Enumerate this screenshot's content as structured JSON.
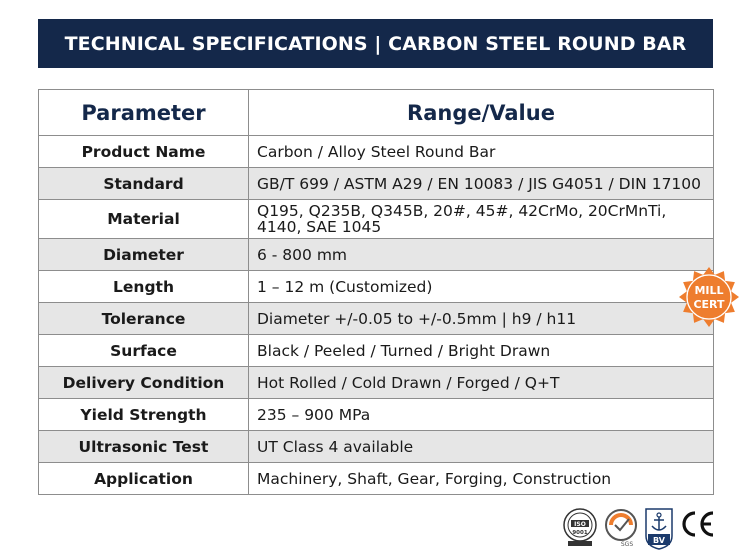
{
  "banner": {
    "title": "TECHNICAL SPECIFICATIONS | CARBON STEEL ROUND BAR"
  },
  "table": {
    "headers": {
      "parameter": "Parameter",
      "value": "Range/Value"
    },
    "rows": [
      {
        "parameter": "Product Name",
        "value": "Carbon / Alloy Steel Round Bar"
      },
      {
        "parameter": "Standard",
        "value": "GB/T 699 / ASTM A29 / EN 10083 / JIS G4051 / DIN 17100"
      },
      {
        "parameter": "Material",
        "value_line1": "Q195, Q235B, Q345B, 20#, 45#, 42CrMo, 20CrMnTi,",
        "value_line2": "4140, SAE 1045"
      },
      {
        "parameter": "Diameter",
        "value": "6 - 800 mm"
      },
      {
        "parameter": "Length",
        "value": "1 – 12 m (Customized)"
      },
      {
        "parameter": "Tolerance",
        "value": "Diameter +/-0.05 to +/-0.5mm | h9 / h11"
      },
      {
        "parameter": "Surface",
        "value": "Black / Peeled / Turned / Bright Drawn"
      },
      {
        "parameter": "Delivery Condition",
        "value": "Hot Rolled / Cold Drawn / Forged / Q+T"
      },
      {
        "parameter": "Yield Strength",
        "value": "235 – 900 MPa"
      },
      {
        "parameter": "Ultrasonic Test",
        "value": "UT Class 4 available"
      },
      {
        "parameter": "Application",
        "value": "Machinery, Shaft, Gear, Forging, Construction"
      }
    ]
  },
  "badge": {
    "line1": "MILL",
    "line2": "CERT"
  },
  "certifications": {
    "iso": "ISO 9001",
    "sgs": "SGS",
    "bv": "BV",
    "ce": "CE"
  },
  "colors": {
    "banner": "#14284a",
    "header_text": "#14284a",
    "row_shade": "#e6e6e6",
    "badge": "#ee7d2e",
    "border": "#8d8d8d"
  }
}
